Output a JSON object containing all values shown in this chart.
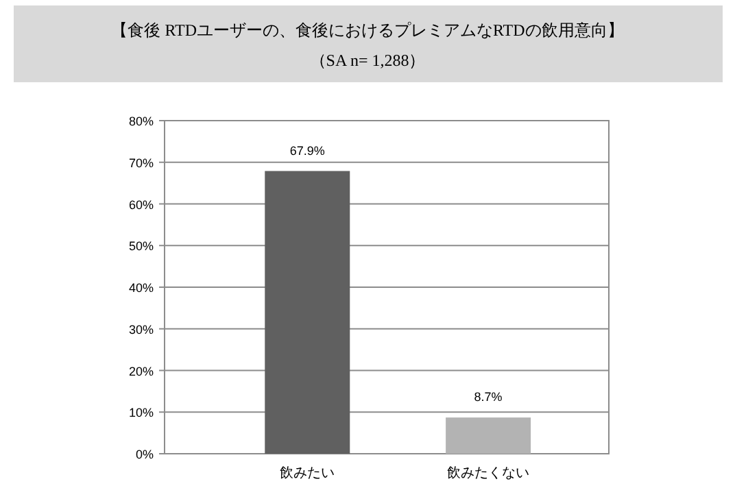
{
  "chart_data": {
    "type": "bar",
    "title": "【食後 RTDユーザーの、食後におけるプレミアムなRTDの飲用意向】",
    "subtitle": "（SA n= 1,288）",
    "categories": [
      "飲みたい",
      "飲みたくない"
    ],
    "values": [
      67.9,
      8.7
    ],
    "colors": [
      "#606060",
      "#b3b3b3"
    ],
    "value_labels": [
      "67.9%",
      "8.7%"
    ],
    "ylim": [
      0,
      80
    ],
    "yticks": [
      {
        "value": 0,
        "label": "0%"
      },
      {
        "value": 10,
        "label": "10%"
      },
      {
        "value": 20,
        "label": "20%"
      },
      {
        "value": 30,
        "label": "30%"
      },
      {
        "value": 40,
        "label": "40%"
      },
      {
        "value": 50,
        "label": "50%"
      },
      {
        "value": 60,
        "label": "60%"
      },
      {
        "value": 70,
        "label": "70%"
      },
      {
        "value": 80,
        "label": "80%"
      }
    ],
    "grid": "y"
  }
}
